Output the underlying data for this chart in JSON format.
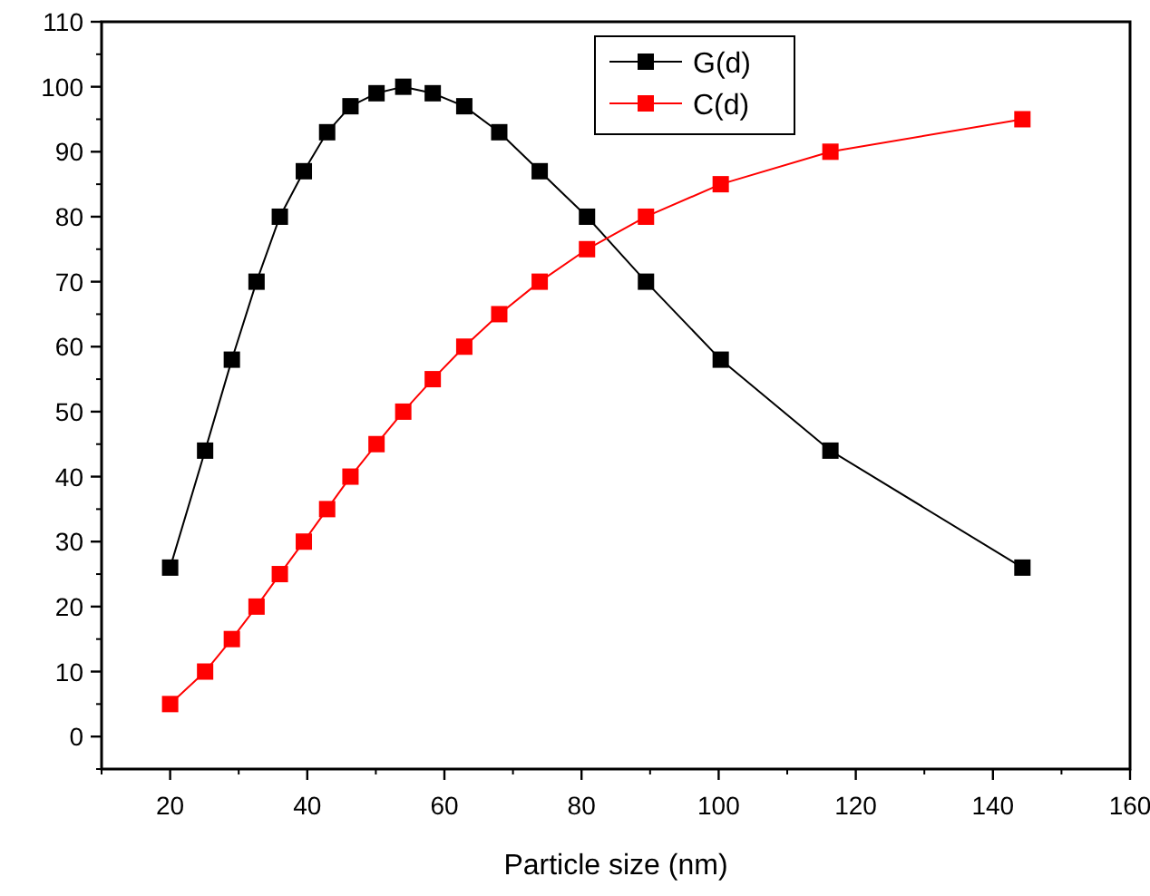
{
  "chart_data": {
    "type": "line",
    "xlabel": "Particle size (nm)",
    "xlim": [
      10,
      160
    ],
    "xticks": [
      20,
      40,
      60,
      80,
      100,
      120,
      140,
      160
    ],
    "ylim": [
      -5,
      110
    ],
    "yticks": [
      0,
      10,
      20,
      30,
      40,
      50,
      60,
      70,
      80,
      90,
      100,
      110
    ],
    "marker": "square",
    "line_style": "solid",
    "legend": "top right",
    "grid": false,
    "series": [
      {
        "name": "G(d)",
        "color": "#000000",
        "x": [
          20,
          25.1,
          29,
          32.6,
          36,
          39.5,
          42.9,
          46.3,
          50.1,
          54,
          58.3,
          62.9,
          68,
          73.9,
          80.8,
          89.4,
          100.3,
          116.3,
          144.3
        ],
        "values": [
          26,
          44,
          58,
          70,
          80,
          87,
          93,
          97,
          99,
          100,
          99,
          97,
          93,
          87,
          80,
          70,
          58,
          44,
          26
        ]
      },
      {
        "name": "C(d)",
        "color": "#ff0000",
        "x": [
          20,
          25.1,
          29,
          32.6,
          36,
          39.5,
          42.9,
          46.3,
          50.1,
          54,
          58.3,
          62.9,
          68,
          73.9,
          80.8,
          89.4,
          100.3,
          116.3,
          144.3
        ],
        "values": [
          5,
          10,
          15,
          20,
          25,
          30,
          35,
          40,
          45,
          50,
          55,
          60,
          65,
          70,
          75,
          80,
          85,
          90,
          95
        ]
      }
    ]
  }
}
